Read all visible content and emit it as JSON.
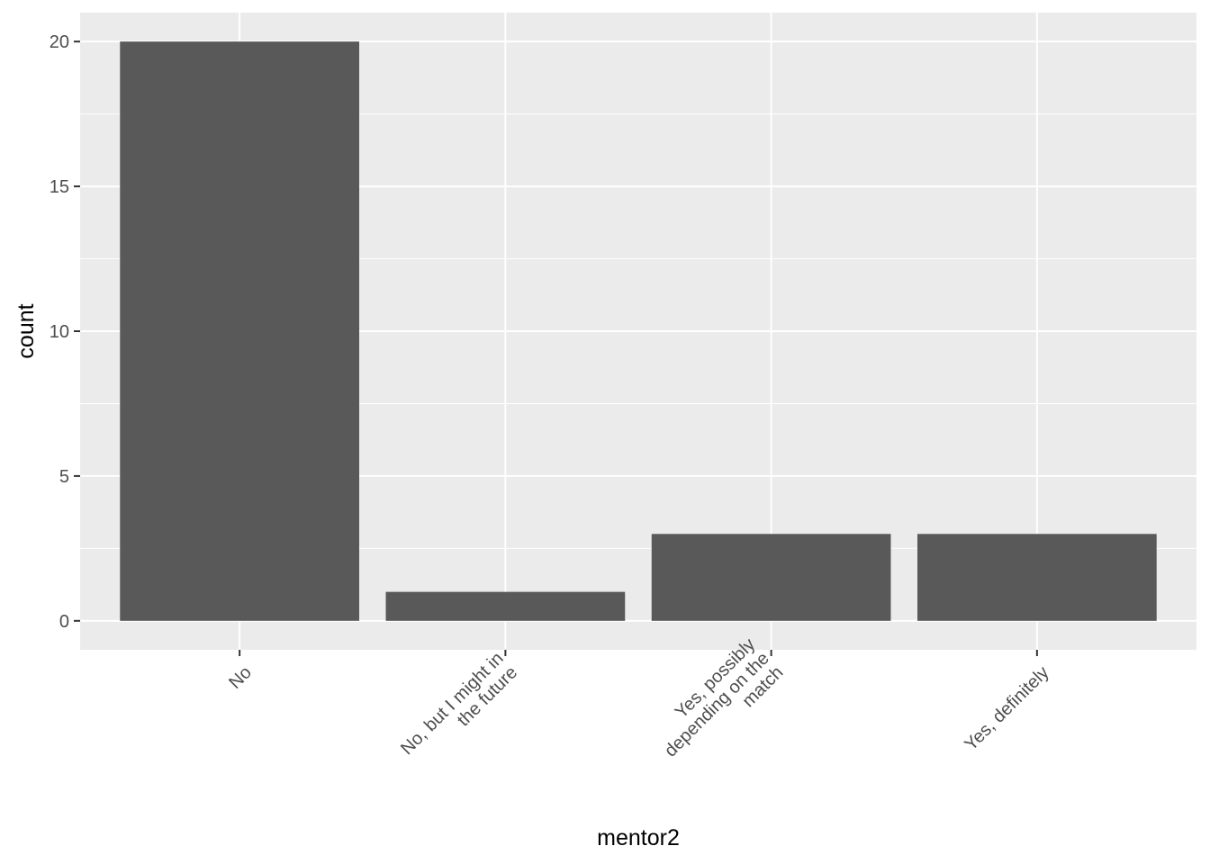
{
  "chart_data": {
    "type": "bar",
    "categories": [
      [
        "No"
      ],
      [
        "No, but I might in",
        "the future"
      ],
      [
        "Yes, possibly",
        "depending on the",
        "match"
      ],
      [
        "Yes, definitely"
      ]
    ],
    "values": [
      20,
      1,
      3,
      3
    ],
    "xlabel": "mentor2",
    "ylabel": "count",
    "ylim": [
      -1,
      21
    ],
    "yticks": [
      "0",
      "5",
      "10",
      "15",
      "20"
    ],
    "grid": true,
    "colors": {
      "panel": "#ebebeb",
      "grid": "#ffffff",
      "bar": "#595959",
      "tick_text": "#4d4d4d",
      "axis_title": "#000000"
    }
  }
}
